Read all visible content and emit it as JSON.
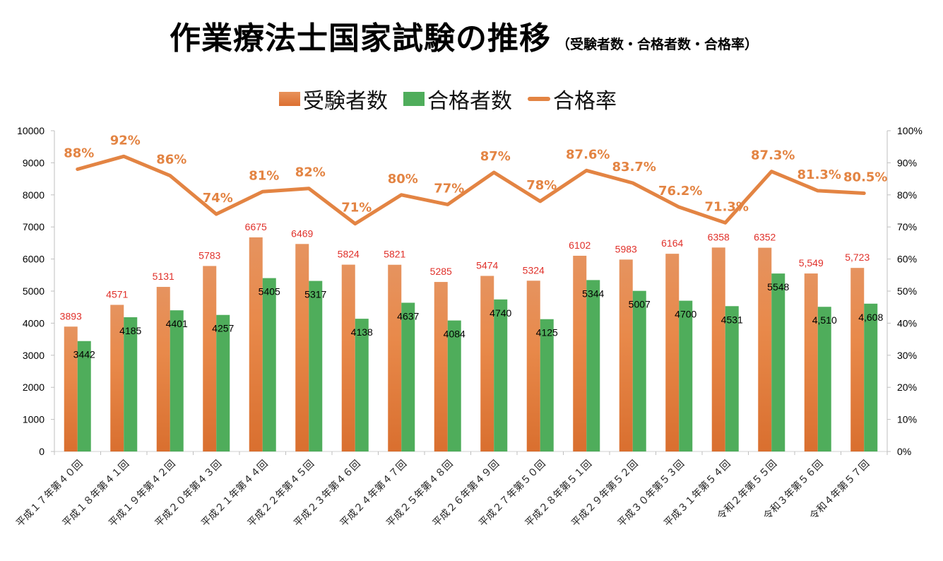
{
  "title": {
    "main": "作業療法士国家試験の推移",
    "sub": "（受験者数・合格者数・合格率）"
  },
  "legend": [
    {
      "label": "受験者数",
      "type": "bar",
      "color": "#e07b3a"
    },
    {
      "label": "合格者数",
      "type": "bar",
      "color": "#4fad5b"
    },
    {
      "label": "合格率",
      "type": "line",
      "color": "#e38443"
    }
  ],
  "chart_data": {
    "type": "bar",
    "title": "作業療法士国家試験の推移（受験者数・合格者数・合格率）",
    "xlabel": "",
    "ylabel": "",
    "y2label": "",
    "ylim": [
      0,
      10000
    ],
    "y2lim": [
      0,
      100
    ],
    "yticks": [
      "0",
      "1000",
      "2000",
      "3000",
      "4000",
      "5000",
      "6000",
      "7000",
      "8000",
      "9000",
      "10000"
    ],
    "y2ticks": [
      "0%",
      "10%",
      "20%",
      "30%",
      "40%",
      "50%",
      "60%",
      "70%",
      "80%",
      "90%",
      "100%"
    ],
    "legend_position": "top",
    "grid": false,
    "categories": [
      "平成１７年第４０回",
      "平成１８年第４１回",
      "平成１９年第４２回",
      "平成２０年第４３回",
      "平成２１年第４４回",
      "平成２２年第４５回",
      "平成２３年第４６回",
      "平成２４年第４７回",
      "平成２５年第４８回",
      "平成２６年第４９回",
      "平成２７年第５０回",
      "平成２８年第５１回",
      "平成２９年第５２回",
      "平成３０年第５３回",
      "平成３１年第５４回",
      "令和２年第５５回",
      "令和３年第５６回",
      "令和４年第５７回"
    ],
    "series": [
      {
        "name": "受験者数",
        "type": "bar",
        "axis": "left",
        "color": "#e07b3a",
        "values": [
          3893,
          4571,
          5131,
          5783,
          6675,
          6469,
          5824,
          5821,
          5285,
          5474,
          5324,
          6102,
          5983,
          6164,
          6358,
          6352,
          5549,
          5723
        ],
        "labels": [
          "3893",
          "4571",
          "5131",
          "5783",
          "6675",
          "6469",
          "5824",
          "5821",
          "5285",
          "5474",
          "5324",
          "6102",
          "5983",
          "6164",
          "6358",
          "6352",
          "5,549",
          "5,723"
        ]
      },
      {
        "name": "合格者数",
        "type": "bar",
        "axis": "left",
        "color": "#4fad5b",
        "values": [
          3442,
          4185,
          4401,
          4257,
          5405,
          5317,
          4138,
          4637,
          4084,
          4740,
          4125,
          5344,
          5007,
          4700,
          4531,
          5548,
          4510,
          4608
        ],
        "labels": [
          "3442",
          "4185",
          "4401",
          "4257",
          "5405",
          "5317",
          "4138",
          "4637",
          "4084",
          "4740",
          "4125",
          "5344",
          "5007",
          "4700",
          "4531",
          "5548",
          "4,510",
          "4,608"
        ]
      },
      {
        "name": "合格率",
        "type": "line",
        "axis": "right",
        "color": "#e38443",
        "values": [
          88,
          92,
          86,
          74,
          81,
          82,
          71,
          80,
          77,
          87,
          78,
          87.6,
          83.7,
          76.2,
          71.3,
          87.3,
          81.3,
          80.5
        ],
        "labels": [
          "88%",
          "92%",
          "86%",
          "74%",
          "81%",
          "82%",
          "71%",
          "80%",
          "77%",
          "87%",
          "78%",
          "87.6%",
          "83.7%",
          "76.2%",
          "71.3%",
          "87.3%",
          "81.3%",
          "80.5%"
        ]
      }
    ]
  }
}
